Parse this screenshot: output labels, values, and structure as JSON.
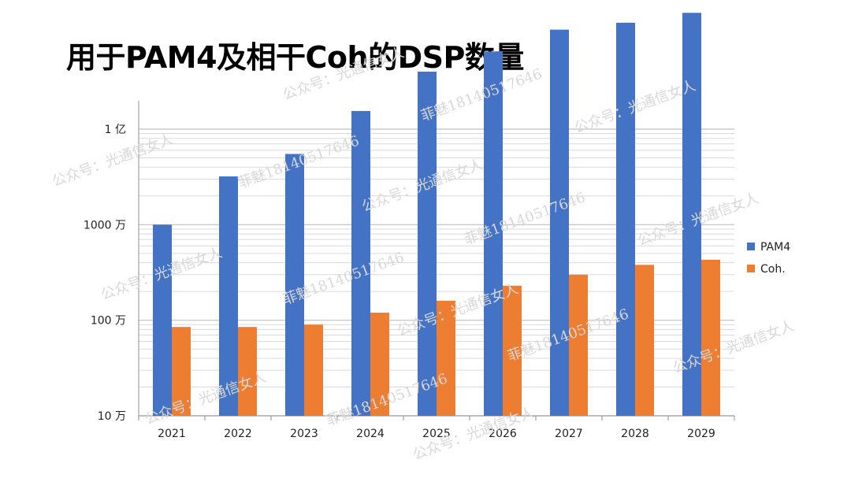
{
  "page": {
    "title": "用于PAM4及相干Coh的DSP数量"
  },
  "chart_data": {
    "type": "bar",
    "title": "",
    "xlabel": "",
    "ylabel": "",
    "y_scale": "log",
    "categories": [
      "2021",
      "2022",
      "2023",
      "2024",
      "2025",
      "2026",
      "2027",
      "2028",
      "2029"
    ],
    "series": [
      {
        "name": "PAM4",
        "color": "#4472C4",
        "values": [
          1000,
          3200,
          5500,
          15500,
          40000,
          65000,
          110000,
          130000,
          165000
        ]
      },
      {
        "name": "Coh.",
        "color": "#ED7D31",
        "values": [
          85,
          85,
          90,
          120,
          160,
          230,
          300,
          380,
          430
        ]
      }
    ],
    "ylim": [
      10,
      200000
    ],
    "y_unit": "万",
    "y_ticks": [
      {
        "value": 10,
        "label": "10 万"
      },
      {
        "value": 100,
        "label": "100 万"
      },
      {
        "value": 1000,
        "label": "1000 万"
      },
      {
        "value": 10000,
        "label": "1 亿"
      }
    ],
    "grid": true,
    "legend_position": "right"
  },
  "watermarks": {
    "account": "公众号：光通信女人",
    "author": "菲魅18140517646"
  }
}
